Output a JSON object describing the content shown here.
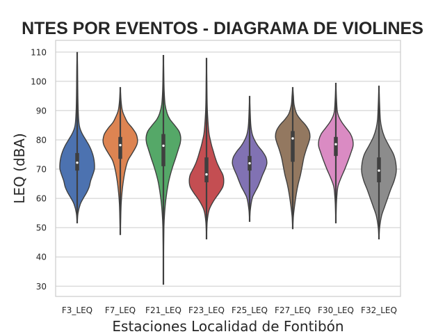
{
  "chart_data": {
    "type": "violin",
    "title": "NIVELES DE RUIDO AMBIENTES POR EVENTOS - DIAGRAMA DE VIOLINES",
    "title_visible": "NTES POR EVENTOS - DIAGRAMA DE VIOLINES",
    "xlabel": "Estaciones Localidad de Fontibón",
    "ylabel": "LEQ (dBA)",
    "ylim": [
      26.5,
      114
    ],
    "yticks": [
      30,
      40,
      50,
      60,
      70,
      80,
      90,
      100,
      110
    ],
    "grid": true,
    "categories": [
      "F3_LEQ",
      "F7_LEQ",
      "F21_LEQ",
      "F23_LEQ",
      "F25_LEQ",
      "F27_LEQ",
      "F30_LEQ",
      "F32_LEQ"
    ],
    "colors": [
      "#4c72b0",
      "#dd8452",
      "#55a868",
      "#c44e52",
      "#8172b3",
      "#937860",
      "#da8bc3",
      "#8c8c8c"
    ],
    "series": [
      {
        "name": "F3_LEQ",
        "min": 51.5,
        "q1": 69.5,
        "median": 72.2,
        "q3": 75.5,
        "max": 110,
        "profile": [
          [
            51.5,
            0
          ],
          [
            55,
            0.05
          ],
          [
            58,
            0.18
          ],
          [
            60,
            0.35
          ],
          [
            62,
            0.55
          ],
          [
            64,
            0.7
          ],
          [
            66,
            0.78
          ],
          [
            68,
            0.9
          ],
          [
            70,
            1.0
          ],
          [
            72,
            1.0
          ],
          [
            74,
            0.95
          ],
          [
            76,
            0.85
          ],
          [
            78,
            0.7
          ],
          [
            80,
            0.5
          ],
          [
            82,
            0.3
          ],
          [
            84,
            0.16
          ],
          [
            86,
            0.1
          ],
          [
            90,
            0.06
          ],
          [
            95,
            0.04
          ],
          [
            100,
            0.03
          ],
          [
            105,
            0.02
          ],
          [
            110,
            0
          ]
        ]
      },
      {
        "name": "F7_LEQ",
        "min": 47.5,
        "q1": 73.5,
        "median": 78.2,
        "q3": 81.0,
        "max": 98,
        "profile": [
          [
            47.5,
            0
          ],
          [
            52,
            0.02
          ],
          [
            58,
            0.05
          ],
          [
            62,
            0.1
          ],
          [
            66,
            0.18
          ],
          [
            70,
            0.3
          ],
          [
            73,
            0.45
          ],
          [
            75,
            0.65
          ],
          [
            77,
            0.85
          ],
          [
            78.5,
            0.97
          ],
          [
            80,
            1.0
          ],
          [
            82,
            0.92
          ],
          [
            84,
            0.7
          ],
          [
            86,
            0.42
          ],
          [
            88,
            0.25
          ],
          [
            90,
            0.12
          ],
          [
            93,
            0.05
          ],
          [
            98,
            0
          ]
        ]
      },
      {
        "name": "F21_LEQ",
        "min": 30.5,
        "q1": 71.0,
        "median": 78.0,
        "q3": 82.0,
        "max": 109,
        "profile": [
          [
            30.5,
            0
          ],
          [
            40,
            0.01
          ],
          [
            50,
            0.03
          ],
          [
            55,
            0.07
          ],
          [
            60,
            0.15
          ],
          [
            65,
            0.28
          ],
          [
            68,
            0.4
          ],
          [
            71,
            0.55
          ],
          [
            74,
            0.72
          ],
          [
            77,
            0.88
          ],
          [
            79,
            0.98
          ],
          [
            81,
            1.0
          ],
          [
            83,
            0.9
          ],
          [
            85,
            0.65
          ],
          [
            87,
            0.38
          ],
          [
            89,
            0.22
          ],
          [
            92,
            0.1
          ],
          [
            96,
            0.05
          ],
          [
            100,
            0.03
          ],
          [
            105,
            0.015
          ],
          [
            109,
            0
          ]
        ]
      },
      {
        "name": "F23_LEQ",
        "min": 46.0,
        "q1": 65.5,
        "median": 68.2,
        "q3": 74.0,
        "max": 108,
        "profile": [
          [
            46,
            0
          ],
          [
            52,
            0.04
          ],
          [
            56,
            0.15
          ],
          [
            59,
            0.4
          ],
          [
            62,
            0.75
          ],
          [
            64,
            0.95
          ],
          [
            66,
            1.0
          ],
          [
            68,
            0.95
          ],
          [
            70,
            0.78
          ],
          [
            72,
            0.62
          ],
          [
            74,
            0.5
          ],
          [
            76,
            0.4
          ],
          [
            78,
            0.3
          ],
          [
            80,
            0.22
          ],
          [
            82,
            0.15
          ],
          [
            85,
            0.1
          ],
          [
            90,
            0.05
          ],
          [
            95,
            0.03
          ],
          [
            100,
            0.02
          ],
          [
            108,
            0
          ]
        ]
      },
      {
        "name": "F25_LEQ",
        "min": 52.0,
        "q1": 69.5,
        "median": 72.0,
        "q3": 74.5,
        "max": 95,
        "profile": [
          [
            52,
            0
          ],
          [
            56,
            0.04
          ],
          [
            60,
            0.15
          ],
          [
            62,
            0.3
          ],
          [
            64,
            0.48
          ],
          [
            66,
            0.62
          ],
          [
            68,
            0.75
          ],
          [
            70,
            0.9
          ],
          [
            72,
            1.0
          ],
          [
            74,
            0.95
          ],
          [
            76,
            0.75
          ],
          [
            78,
            0.48
          ],
          [
            80,
            0.28
          ],
          [
            82,
            0.15
          ],
          [
            85,
            0.07
          ],
          [
            90,
            0.03
          ],
          [
            95,
            0
          ]
        ]
      },
      {
        "name": "F27_LEQ",
        "min": 49.5,
        "q1": 72.5,
        "median": 80.5,
        "q3": 83.0,
        "max": 98,
        "profile": [
          [
            49.5,
            0
          ],
          [
            54,
            0.04
          ],
          [
            58,
            0.12
          ],
          [
            62,
            0.22
          ],
          [
            65,
            0.32
          ],
          [
            68,
            0.45
          ],
          [
            71,
            0.55
          ],
          [
            74,
            0.65
          ],
          [
            77,
            0.8
          ],
          [
            79,
            0.92
          ],
          [
            81,
            1.0
          ],
          [
            83,
            0.95
          ],
          [
            85,
            0.75
          ],
          [
            87,
            0.45
          ],
          [
            89,
            0.22
          ],
          [
            92,
            0.08
          ],
          [
            95,
            0.04
          ],
          [
            98,
            0
          ]
        ]
      },
      {
        "name": "F30_LEQ",
        "min": 51.5,
        "q1": 74.5,
        "median": 78.5,
        "q3": 81.0,
        "max": 99.5,
        "profile": [
          [
            51.5,
            0
          ],
          [
            56,
            0.02
          ],
          [
            60,
            0.05
          ],
          [
            64,
            0.12
          ],
          [
            67,
            0.3
          ],
          [
            70,
            0.52
          ],
          [
            73,
            0.72
          ],
          [
            76,
            0.9
          ],
          [
            78,
            1.0
          ],
          [
            80,
            0.98
          ],
          [
            82,
            0.85
          ],
          [
            84,
            0.6
          ],
          [
            86,
            0.35
          ],
          [
            88,
            0.17
          ],
          [
            90,
            0.08
          ],
          [
            95,
            0.03
          ],
          [
            99.5,
            0
          ]
        ]
      },
      {
        "name": "F32_LEQ",
        "min": 46.0,
        "q1": 65.5,
        "median": 69.5,
        "q3": 74.0,
        "max": 98.5,
        "profile": [
          [
            46,
            0
          ],
          [
            50,
            0.04
          ],
          [
            54,
            0.15
          ],
          [
            57,
            0.32
          ],
          [
            60,
            0.5
          ],
          [
            63,
            0.68
          ],
          [
            66,
            0.88
          ],
          [
            69,
            1.0
          ],
          [
            72,
            0.98
          ],
          [
            75,
            0.85
          ],
          [
            78,
            0.58
          ],
          [
            81,
            0.32
          ],
          [
            84,
            0.16
          ],
          [
            87,
            0.08
          ],
          [
            92,
            0.04
          ],
          [
            98.5,
            0
          ]
        ]
      }
    ]
  }
}
